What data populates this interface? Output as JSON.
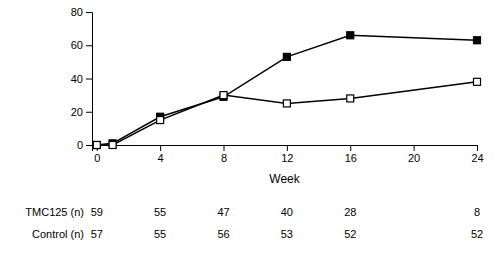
{
  "chart_data": {
    "type": "line",
    "x": [
      0,
      1,
      4,
      8,
      12,
      16,
      24
    ],
    "series": [
      {
        "color": "#000000",
        "marker": "square",
        "values": [
          0,
          1,
          17,
          29,
          53,
          66,
          63
        ]
      },
      {
        "color": "#000000",
        "marker": "square-open",
        "values": [
          0,
          0,
          15,
          30,
          25,
          28,
          38
        ]
      }
    ],
    "xlabel": "Week",
    "xlim": [
      -0.3,
      24
    ],
    "ylim": [
      0,
      80
    ],
    "xticks": [
      0,
      4,
      8,
      12,
      16,
      20,
      24
    ],
    "yticks": [
      0,
      20,
      40,
      60,
      80
    ],
    "grid": false,
    "table": {
      "x": [
        0,
        4,
        8,
        12,
        16,
        24
      ],
      "rows": [
        {
          "label": "TMC125 (n)",
          "values": [
            59,
            55,
            47,
            40,
            28,
            8
          ]
        },
        {
          "label": "Control (n)",
          "values": [
            57,
            55,
            56,
            53,
            52,
            52
          ]
        }
      ]
    }
  }
}
